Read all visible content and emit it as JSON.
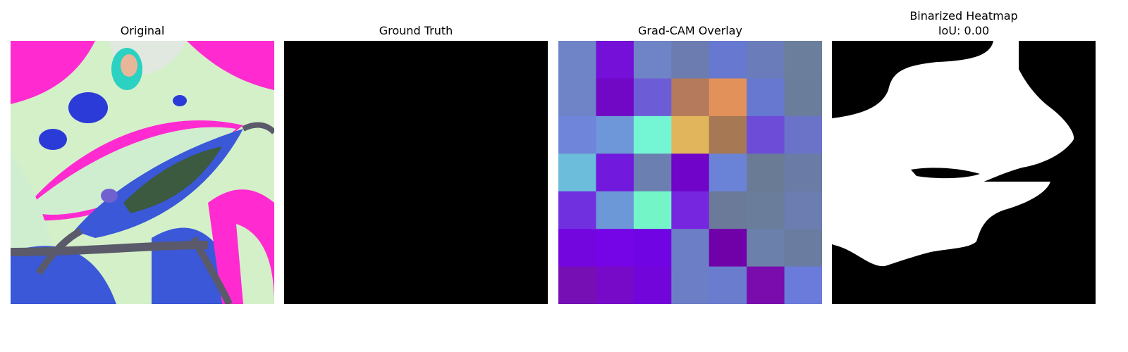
{
  "panels": {
    "original": {
      "title": "Original"
    },
    "ground_truth": {
      "title": "Ground Truth"
    },
    "gradcam": {
      "title": "Grad-CAM Overlay",
      "grid_colors": [
        [
          "#6f84c6",
          "#7410d8",
          "#6f84c6",
          "#6c7bb0",
          "#6678d0",
          "#6a7dba",
          "#6b7f9c"
        ],
        [
          "#6f84c6",
          "#7008c6",
          "#6c5dd6",
          "#b47a5b",
          "#e2915a",
          "#6678d0",
          "#6a7d9a"
        ],
        [
          "#6e85d9",
          "#6d97d8",
          "#74f5d4",
          "#e1b55c",
          "#a67853",
          "#6d4cd8",
          "#6a73c8"
        ],
        [
          "#6bbddb",
          "#7119dc",
          "#6b7fb0",
          "#7004c8",
          "#6b83d6",
          "#6a7b95",
          "#6a7ba5"
        ],
        [
          "#7130e0",
          "#6d98d8",
          "#74f5c8",
          "#7626df",
          "#6a7a98",
          "#6a7d9b",
          "#6c7db2"
        ],
        [
          "#7305df",
          "#7505e6",
          "#7104e2",
          "#6b7ec6",
          "#7000a8",
          "#6b80aa",
          "#6a7c9f"
        ],
        [
          "#7710b4",
          "#770ac8",
          "#7205da",
          "#6c7ec6",
          "#6a7cce",
          "#7a0cae",
          "#6b7bdb"
        ]
      ]
    },
    "binarized": {
      "title_line1": "Binarized Heatmap",
      "title_line2": "IoU: 0.00"
    }
  }
}
